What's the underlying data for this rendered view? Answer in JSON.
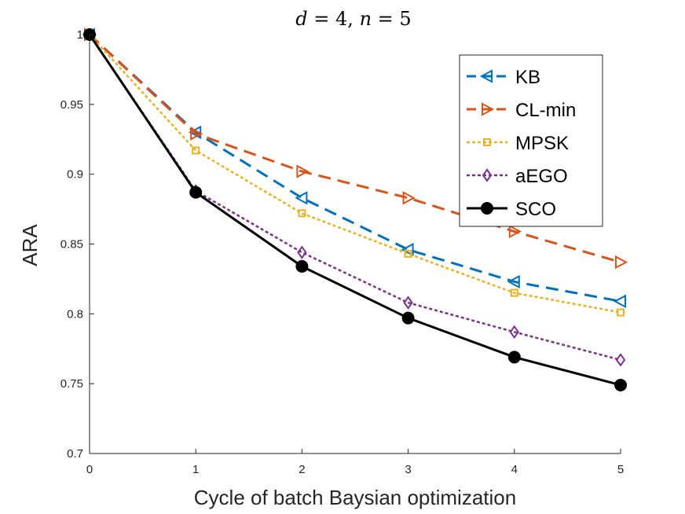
{
  "chart_data": {
    "type": "line",
    "title": "d = 4, n = 5",
    "xlabel": "Cycle of batch Baysian optimization",
    "ylabel": "ARA",
    "x": [
      0,
      1,
      2,
      3,
      4,
      5
    ],
    "xlim": [
      0,
      5
    ],
    "ylim": [
      0.7,
      1.0
    ],
    "xticks": [
      "0",
      "1",
      "2",
      "3",
      "4",
      "5"
    ],
    "yticks": [
      "0.7",
      "0.75",
      "0.8",
      "0.85",
      "0.9",
      "0.95",
      "1"
    ],
    "grid": false,
    "legend_position": "top-right",
    "series": [
      {
        "name": "KB",
        "values": [
          1.0,
          0.93,
          0.883,
          0.846,
          0.823,
          0.809
        ],
        "color": "#0072BD",
        "dash": "dashed",
        "marker": "triangle-left"
      },
      {
        "name": "CL-min",
        "values": [
          1.0,
          0.929,
          0.902,
          0.883,
          0.859,
          0.837
        ],
        "color": "#D95319",
        "dash": "dashed",
        "marker": "triangle-right"
      },
      {
        "name": "MPSK",
        "values": [
          1.0,
          0.917,
          0.872,
          0.843,
          0.815,
          0.801
        ],
        "color": "#EDB120",
        "dash": "dotted",
        "marker": "square"
      },
      {
        "name": "aEGO",
        "values": [
          1.0,
          0.888,
          0.844,
          0.808,
          0.787,
          0.767
        ],
        "color": "#7E2F8E",
        "dash": "dotted",
        "marker": "diamond"
      },
      {
        "name": "SCO",
        "values": [
          1.0,
          0.887,
          0.834,
          0.797,
          0.769,
          0.749
        ],
        "color": "#000000",
        "dash": "solid",
        "marker": "circle"
      }
    ]
  }
}
